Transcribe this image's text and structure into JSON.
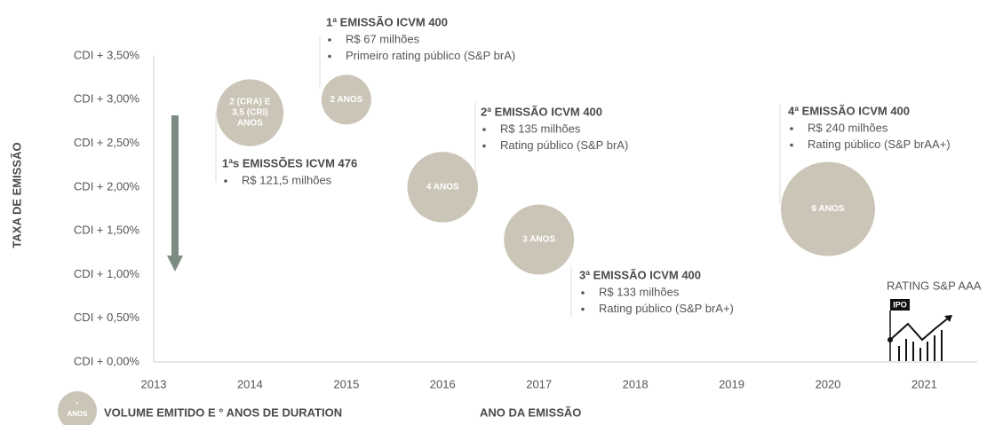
{
  "chart_data": {
    "type": "bubble",
    "y_label": "TAXA DE EMISSÃO",
    "x_label": "ANO DA EMISSÃO",
    "legend_text": "VOLUME EMITIDO E ° ANOS DE DURATION",
    "legend_bubble": [
      "°",
      "ANOS"
    ],
    "color": "#cbc5b7",
    "x": [
      2014,
      2015,
      2016,
      2017,
      2020
    ],
    "values": [
      2.85,
      3.0,
      2.0,
      1.4,
      1.75
    ],
    "sizes": [
      121.5,
      67,
      135,
      133,
      240
    ],
    "bubble_labels": [
      [
        "2 (CRA) E",
        "3,5 (CRI)",
        "ANOS"
      ],
      [
        "2 ANOS"
      ],
      [
        "4 ANOS"
      ],
      [
        "3 ANOS"
      ],
      [
        "6 ANOS"
      ]
    ],
    "annotations": [
      {
        "title": "1ªs EMISSÕES ICVM 476",
        "bullets": [
          "R$ 121,5 milhões"
        ]
      },
      {
        "title": "1ª EMISSÃO ICVM 400",
        "bullets": [
          "R$ 67 milhões",
          "Primeiro rating público (S&P brA)"
        ]
      },
      {
        "title": "2ª EMISSÃO ICVM 400",
        "bullets": [
          "R$ 135 milhões",
          "Rating público (S&P brA)"
        ]
      },
      {
        "title": "3ª EMISSÃO ICVM 400",
        "bullets": [
          "R$ 133 milhões",
          "Rating público (S&P brA+)"
        ]
      },
      {
        "title": "4ª EMISSÃO ICVM 400",
        "bullets": [
          "R$ 240 milhões",
          "Rating público (S&P brAA+)"
        ]
      }
    ],
    "rating_note": "RATING S&P AAA",
    "icon_label": "IPO",
    "xlim": [
      2013,
      2021.55
    ],
    "xticks": [
      2013,
      2014,
      2015,
      2016,
      2017,
      2018,
      2019,
      2020,
      2021
    ],
    "ylim": [
      0,
      3.5
    ],
    "yticks": [
      {
        "value": 0,
        "label": "CDI + 0,00%"
      },
      {
        "value": 0.5,
        "label": "CDI + 0,50%"
      },
      {
        "value": 1,
        "label": "CDI + 1,00%"
      },
      {
        "value": 1.5,
        "label": "CDI + 1,50%"
      },
      {
        "value": 2,
        "label": "CDI + 2,00%"
      },
      {
        "value": 2.5,
        "label": "CDI + 2,50%"
      },
      {
        "value": 3,
        "label": "CDI + 3,00%"
      },
      {
        "value": 3.5,
        "label": "CDI + 3,50%"
      }
    ]
  }
}
